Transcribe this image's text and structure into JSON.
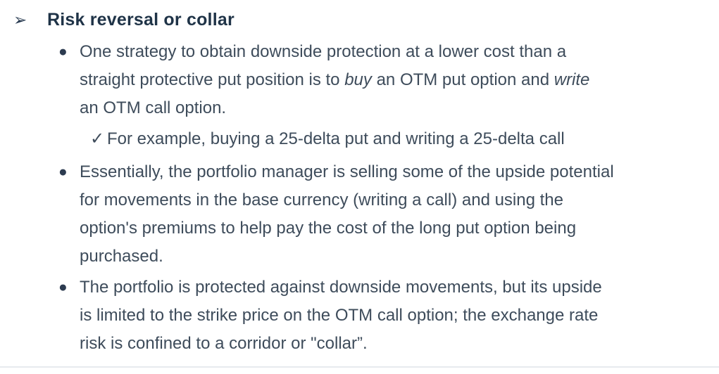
{
  "content": {
    "heading": {
      "marker": "➢",
      "text": "Risk reversal or collar"
    },
    "items": [
      {
        "type": "bullet",
        "marker": "●",
        "lines": [
          [
            {
              "t": "One strategy to obtain downside protection at a lower cost than a"
            }
          ],
          [
            {
              "t": "straight protective put position is to "
            },
            {
              "t": "buy",
              "i": true
            },
            {
              "t": " an OTM put option and "
            },
            {
              "t": "write",
              "i": true
            }
          ],
          [
            {
              "t": "an OTM call option."
            }
          ]
        ]
      },
      {
        "type": "check",
        "marker": "✓",
        "lines": [
          [
            {
              "t": "For example, buying a 25-delta put and writing a 25-delta call"
            }
          ]
        ]
      },
      {
        "type": "bullet",
        "marker": "●",
        "lines": [
          [
            {
              "t": "Essentially, the portfolio manager is selling some of the upside potential"
            }
          ],
          [
            {
              "t": "for movements in the base currency (writing a call) and using the"
            }
          ],
          [
            {
              "t": "option's premiums to help pay the cost of the long put option being"
            }
          ],
          [
            {
              "t": "purchased."
            }
          ]
        ]
      },
      {
        "type": "bullet",
        "marker": "●",
        "lines": [
          [
            {
              "t": "The portfolio is protected against downside movements, but its upside"
            }
          ],
          [
            {
              "t": "is limited to the strike price on the OTM call option; the exchange rate"
            }
          ],
          [
            {
              "t": "risk is confined to a corridor or \"collar”."
            }
          ]
        ]
      }
    ]
  },
  "colors": {
    "heading_text": "#1f3347",
    "body_text": "#3e4c5b",
    "bullet_dot": "#2c3b50",
    "divider": "#e7eaee",
    "background": "#ffffff"
  }
}
